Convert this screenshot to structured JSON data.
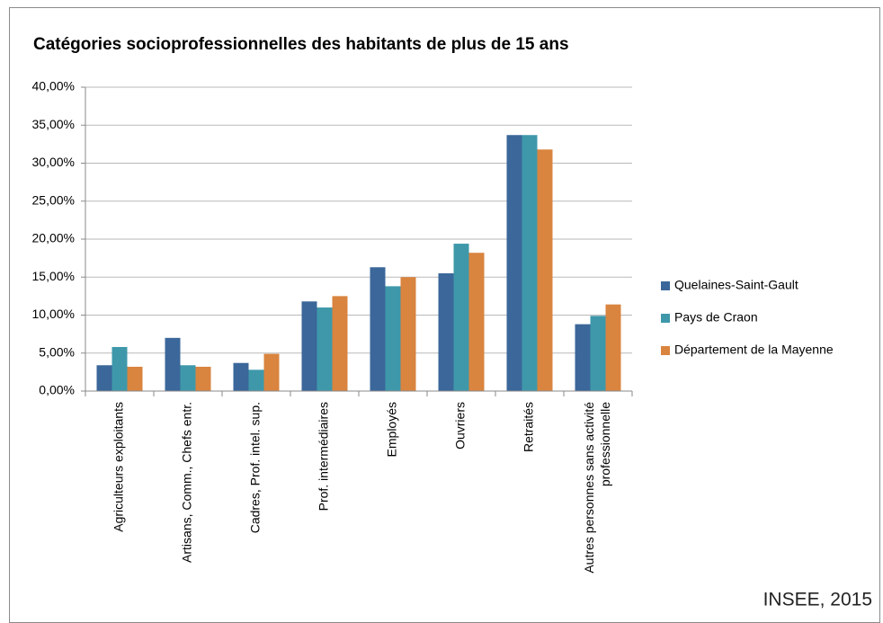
{
  "chart_data": {
    "type": "bar",
    "title": "Catégories socioprofessionnelles des habitants de plus de  15 ans",
    "categories": [
      "Agriculteurs exploitants",
      "Artisans, Comm., Chefs entr.",
      "Cadres, Prof. intel. sup.",
      "Prof. intermédiaires",
      "Employés",
      "Ouvriers",
      "Retraités",
      "Autres personnes sans activité professionnelle"
    ],
    "series": [
      {
        "name": "Quelaines-Saint-Gault",
        "color": "#3b679a",
        "values": [
          3.4,
          7.0,
          3.7,
          11.8,
          16.3,
          15.5,
          33.7,
          8.8
        ]
      },
      {
        "name": "Pays de Craon",
        "color": "#3e98aa",
        "values": [
          5.8,
          3.4,
          2.8,
          11.0,
          13.8,
          19.4,
          33.7,
          9.9
        ]
      },
      {
        "name": "Département de la Mayenne",
        "color": "#d9843f",
        "values": [
          3.2,
          3.2,
          4.9,
          12.5,
          15.0,
          18.2,
          31.8,
          11.4
        ]
      }
    ],
    "ylim": [
      0,
      40
    ],
    "yticks": [
      {
        "value": 0,
        "label": "0,00%"
      },
      {
        "value": 5,
        "label": "5,00%"
      },
      {
        "value": 10,
        "label": "10,00%"
      },
      {
        "value": 15,
        "label": "15,00%"
      },
      {
        "value": 20,
        "label": "20,00%"
      },
      {
        "value": 25,
        "label": "25,00%"
      },
      {
        "value": 30,
        "label": "30,00%"
      },
      {
        "value": 35,
        "label": "35,00%"
      },
      {
        "value": 40,
        "label": "40,00%"
      }
    ],
    "grid": true,
    "legend": "right",
    "source": "INSEE, 2015"
  }
}
